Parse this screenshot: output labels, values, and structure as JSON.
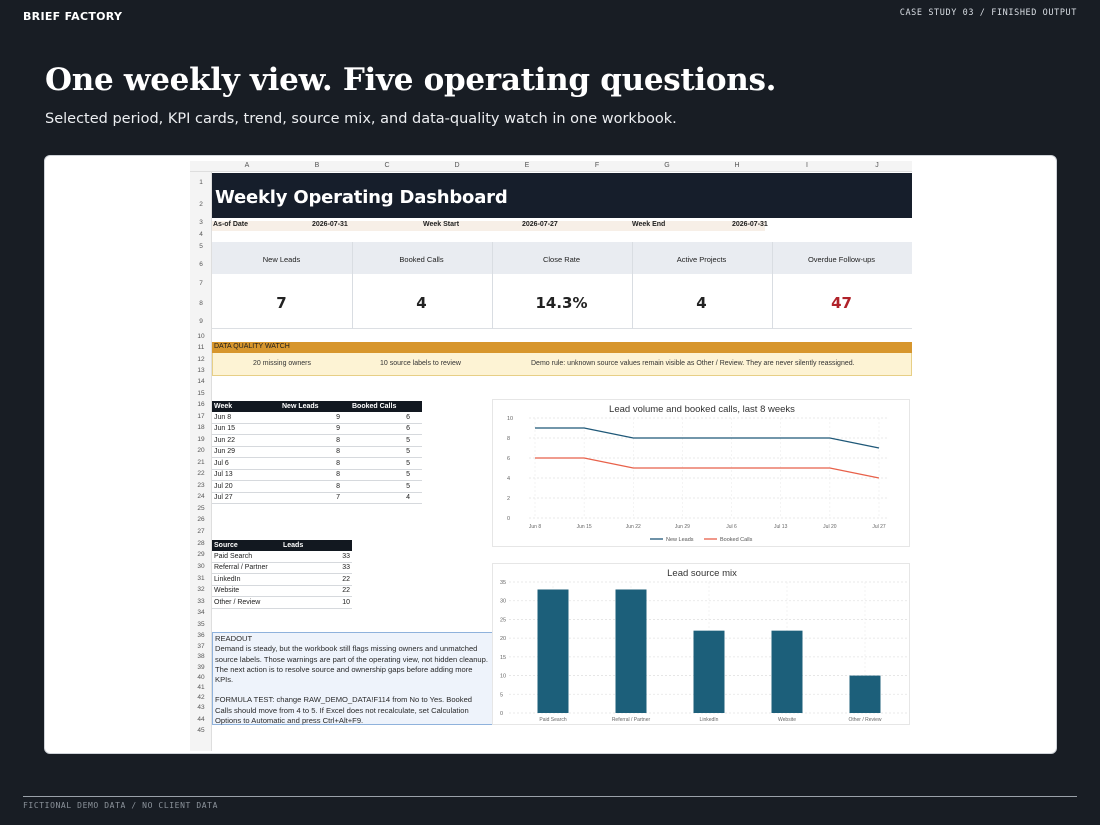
{
  "header": {
    "brand": "BRIEF FACTORY",
    "case_tag": "CASE STUDY 03 / FINISHED OUTPUT"
  },
  "headline": "One weekly view. Five operating questions.",
  "subheadline": "Selected period, KPI cards, trend, source mix, and data-quality watch in one workbook.",
  "footer": {
    "note": "FICTIONAL DEMO DATA / NO CLIENT DATA"
  },
  "sheet": {
    "columns": [
      "A",
      "B",
      "C",
      "D",
      "E",
      "F",
      "G",
      "H",
      "I",
      "J"
    ],
    "rows": [
      "1",
      "2",
      "3",
      "4",
      "5",
      "6",
      "7",
      "8",
      "9",
      "10",
      "11",
      "12",
      "13",
      "14",
      "15",
      "16",
      "17",
      "18",
      "19",
      "20",
      "21",
      "22",
      "23",
      "24",
      "25",
      "26",
      "27",
      "28",
      "29",
      "30",
      "31",
      "32",
      "33",
      "34",
      "35",
      "36",
      "37",
      "38",
      "39",
      "40",
      "41",
      "42",
      "43",
      "44",
      "45"
    ],
    "title": "Weekly Operating Dashboard",
    "dates": {
      "as_of_label": "As-of Date",
      "as_of_value": "2026-07-31",
      "week_start_label": "Week Start",
      "week_start_value": "2026-07-27",
      "week_end_label": "Week End",
      "week_end_value": "2026-07-31"
    },
    "kpis": [
      {
        "label": "New Leads",
        "value": "7"
      },
      {
        "label": "Booked Calls",
        "value": "4"
      },
      {
        "label": "Close Rate",
        "value": "14.3%"
      },
      {
        "label": "Active Projects",
        "value": "4"
      },
      {
        "label": "Overdue Follow-ups",
        "value": "47"
      }
    ],
    "alert_color": "#b0222a",
    "data_quality": {
      "title": "DATA QUALITY WATCH",
      "missing_owners": "20 missing owners",
      "labels_to_review": "10 source labels to review",
      "rule": "Demo rule: unknown source values remain visible as Other / Review. They are never silently reassigned."
    },
    "weekly_table": {
      "headers": [
        "Week",
        "New Leads",
        "Booked Calls"
      ],
      "rows": [
        [
          "Jun 8",
          "9",
          "6"
        ],
        [
          "Jun 15",
          "9",
          "6"
        ],
        [
          "Jun 22",
          "8",
          "5"
        ],
        [
          "Jun 29",
          "8",
          "5"
        ],
        [
          "Jul 6",
          "8",
          "5"
        ],
        [
          "Jul 13",
          "8",
          "5"
        ],
        [
          "Jul 20",
          "8",
          "5"
        ],
        [
          "Jul 27",
          "7",
          "4"
        ]
      ]
    },
    "source_table": {
      "headers": [
        "Source",
        "Leads"
      ],
      "rows": [
        [
          "Paid Search",
          "33"
        ],
        [
          "Referral / Partner",
          "33"
        ],
        [
          "LinkedIn",
          "22"
        ],
        [
          "Website",
          "22"
        ],
        [
          "Other / Review",
          "10"
        ]
      ]
    },
    "readout": {
      "heading": "READOUT",
      "body": "Demand is steady, but the workbook still flags missing owners and unmatched source labels. Those warnings are part of the operating view, not hidden cleanup. The next action is to resolve source and ownership gaps before adding more KPIs.",
      "formula_test": "FORMULA TEST: change RAW_DEMO_DATA!F114 from No to Yes. Booked Calls should move from 4 to 5. If Excel does not recalculate, set Calculation Options to Automatic and press Ctrl+Alt+F9."
    }
  },
  "chart_data": [
    {
      "type": "line",
      "title": "Lead volume and booked calls, last 8 weeks",
      "categories": [
        "Jun 8",
        "Jun 15",
        "Jun 22",
        "Jun 29",
        "Jul 6",
        "Jul 13",
        "Jul 20",
        "Jul 27"
      ],
      "series": [
        {
          "name": "New Leads",
          "values": [
            9,
            9,
            8,
            8,
            8,
            8,
            8,
            7
          ],
          "color": "#1f5878"
        },
        {
          "name": "Booked Calls",
          "values": [
            6,
            6,
            5,
            5,
            5,
            5,
            5,
            4
          ],
          "color": "#e8614a"
        }
      ],
      "ylim": [
        0,
        10
      ],
      "yticks": [
        "0",
        "2",
        "4",
        "6",
        "8",
        "10"
      ],
      "grid": true,
      "legend": "bottom"
    },
    {
      "type": "bar",
      "title": "Lead source mix",
      "categories": [
        "Paid Search",
        "Referral / Partner",
        "LinkedIn",
        "Website",
        "Other / Review"
      ],
      "values": [
        33,
        33,
        22,
        22,
        10
      ],
      "color": "#1c5f7a",
      "ylim": [
        0,
        35
      ],
      "yticks": [
        "0",
        "5",
        "10",
        "15",
        "20",
        "25",
        "30",
        "35"
      ],
      "grid": true
    }
  ]
}
